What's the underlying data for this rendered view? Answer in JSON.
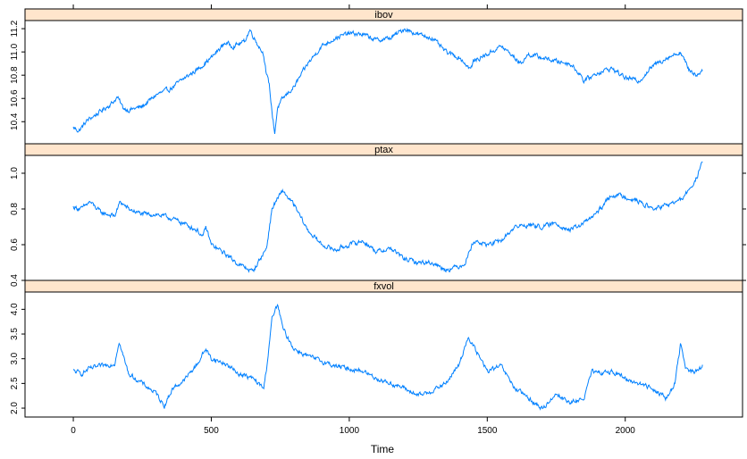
{
  "chart_data": {
    "type": "line",
    "xlabel": "Time",
    "xlim": [
      -175,
      2425
    ],
    "x_ticks": [
      "0",
      "500",
      "1000",
      "1500",
      "2000"
    ],
    "x_tick_values": [
      0,
      500,
      1000,
      1500,
      2000
    ],
    "grid": false,
    "line_color": "#0080ff",
    "strip_color": "#ffe5cc",
    "panels": [
      {
        "name": "ibov",
        "ylim": [
          10.21,
          11.27
        ],
        "y_ticks": [
          "10.4",
          "10.6",
          "10.8",
          "11.0",
          "11.2"
        ],
        "y_tick_values": [
          10.4,
          10.6,
          10.8,
          11.0,
          11.2
        ],
        "x": [
          0,
          20,
          50,
          100,
          140,
          160,
          180,
          200,
          250,
          300,
          350,
          400,
          450,
          500,
          520,
          550,
          580,
          620,
          640,
          660,
          680,
          690,
          700,
          710,
          720,
          730,
          740,
          760,
          800,
          850,
          900,
          950,
          1000,
          1050,
          1100,
          1150,
          1200,
          1250,
          1300,
          1350,
          1400,
          1440,
          1450,
          1500,
          1550,
          1600,
          1620,
          1650,
          1700,
          1750,
          1800,
          1840,
          1850,
          1900,
          1950,
          2000,
          2050,
          2100,
          2150,
          2200,
          2230,
          2260,
          2280
        ],
        "values": [
          10.35,
          10.32,
          10.41,
          10.49,
          10.56,
          10.61,
          10.52,
          10.5,
          10.53,
          10.63,
          10.68,
          10.77,
          10.85,
          10.95,
          11.0,
          11.08,
          11.05,
          11.09,
          11.19,
          11.1,
          11.02,
          10.98,
          10.8,
          10.72,
          10.48,
          10.3,
          10.52,
          10.6,
          10.7,
          10.9,
          11.05,
          11.12,
          11.16,
          11.15,
          11.1,
          11.12,
          11.2,
          11.15,
          11.12,
          11.0,
          10.95,
          10.85,
          10.92,
          10.98,
          11.05,
          10.95,
          10.9,
          10.98,
          10.95,
          10.92,
          10.9,
          10.8,
          10.75,
          10.82,
          10.86,
          10.78,
          10.75,
          10.88,
          10.95,
          11.0,
          10.85,
          10.8,
          10.85
        ]
      },
      {
        "name": "ptax",
        "ylim": [
          0.4,
          1.1
        ],
        "y_ticks": [
          "0.4",
          "0.6",
          "0.8",
          "1.0"
        ],
        "y_tick_values": [
          0.4,
          0.6,
          0.8,
          1.0
        ],
        "x": [
          0,
          30,
          60,
          100,
          150,
          170,
          200,
          250,
          300,
          350,
          400,
          450,
          470,
          480,
          500,
          550,
          600,
          650,
          700,
          720,
          740,
          760,
          800,
          850,
          900,
          950,
          1000,
          1050,
          1100,
          1150,
          1200,
          1250,
          1300,
          1350,
          1400,
          1420,
          1450,
          1500,
          1550,
          1600,
          1650,
          1700,
          1750,
          1800,
          1850,
          1900,
          1950,
          2000,
          2050,
          2100,
          2150,
          2200,
          2230,
          2260,
          2280
        ],
        "values": [
          0.81,
          0.8,
          0.84,
          0.78,
          0.76,
          0.84,
          0.8,
          0.77,
          0.77,
          0.75,
          0.72,
          0.68,
          0.64,
          0.7,
          0.6,
          0.55,
          0.49,
          0.45,
          0.58,
          0.8,
          0.86,
          0.9,
          0.82,
          0.68,
          0.6,
          0.57,
          0.6,
          0.62,
          0.56,
          0.58,
          0.52,
          0.5,
          0.5,
          0.46,
          0.48,
          0.5,
          0.62,
          0.6,
          0.62,
          0.7,
          0.71,
          0.7,
          0.72,
          0.68,
          0.72,
          0.78,
          0.88,
          0.87,
          0.84,
          0.8,
          0.82,
          0.85,
          0.9,
          0.98,
          1.06
        ]
      },
      {
        "name": "fxvol",
        "ylim": [
          1.82,
          4.35
        ],
        "y_ticks": [
          "2.0",
          "2.5",
          "3.0",
          "3.5",
          "4.0"
        ],
        "y_tick_values": [
          2.0,
          2.5,
          3.0,
          3.5,
          4.0
        ],
        "x": [
          0,
          30,
          60,
          100,
          150,
          165,
          200,
          250,
          300,
          330,
          360,
          400,
          450,
          480,
          500,
          550,
          600,
          650,
          690,
          700,
          720,
          740,
          760,
          800,
          850,
          900,
          950,
          1000,
          1050,
          1100,
          1150,
          1200,
          1250,
          1300,
          1350,
          1400,
          1430,
          1460,
          1500,
          1550,
          1600,
          1650,
          1700,
          1750,
          1800,
          1850,
          1880,
          1900,
          1950,
          2000,
          2050,
          2100,
          2150,
          2180,
          2200,
          2220,
          2250,
          2280
        ],
        "values": [
          2.75,
          2.7,
          2.8,
          2.85,
          2.9,
          3.35,
          2.7,
          2.5,
          2.3,
          2.05,
          2.4,
          2.55,
          2.9,
          3.2,
          3.0,
          2.9,
          2.7,
          2.6,
          2.4,
          2.8,
          3.8,
          4.1,
          3.6,
          3.2,
          3.05,
          2.95,
          2.85,
          2.8,
          2.75,
          2.6,
          2.5,
          2.4,
          2.25,
          2.35,
          2.5,
          2.9,
          3.45,
          3.15,
          2.75,
          2.85,
          2.4,
          2.2,
          1.98,
          2.3,
          2.1,
          2.2,
          2.75,
          2.7,
          2.75,
          2.6,
          2.5,
          2.4,
          2.2,
          2.5,
          3.3,
          2.8,
          2.7,
          2.85
        ]
      }
    ]
  }
}
